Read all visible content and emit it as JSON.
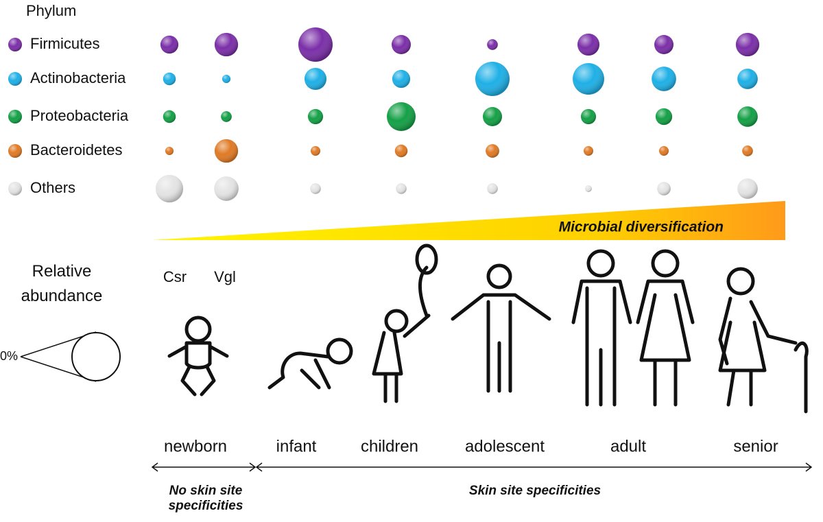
{
  "legend_title": "Phylum",
  "phyla": [
    {
      "name": "Firmicutes",
      "color": "#7b2fa8",
      "values": [
        14,
        24,
        51,
        16,
        5,
        21,
        16,
        24
      ]
    },
    {
      "name": "Actinobacteria",
      "color": "#1fb0e6",
      "values": [
        7,
        3,
        21,
        14,
        51,
        43,
        26,
        18
      ]
    },
    {
      "name": "Proteobacteria",
      "color": "#14a046",
      "values": [
        7,
        5,
        10,
        36,
        16,
        10,
        12,
        18
      ]
    },
    {
      "name": "Bacteroidetes",
      "color": "#e07a25",
      "values": [
        3,
        24,
        4,
        7,
        8,
        4,
        4,
        5
      ]
    },
    {
      "name": "Others",
      "color": "#e4e4e4",
      "values": [
        33,
        26,
        5,
        5,
        5,
        2,
        8,
        18
      ]
    }
  ],
  "site_labels": [
    "Csr",
    "Vgl"
  ],
  "gradient_label": "Microbial diversification",
  "abundance_title": "Relative abundance",
  "scale_label": "0%",
  "stages": [
    "newborn",
    "infant",
    "children",
    "adolescent",
    "adult",
    "senior"
  ],
  "periods": [
    "No skin site specificities",
    "Skin site specificities"
  ]
}
